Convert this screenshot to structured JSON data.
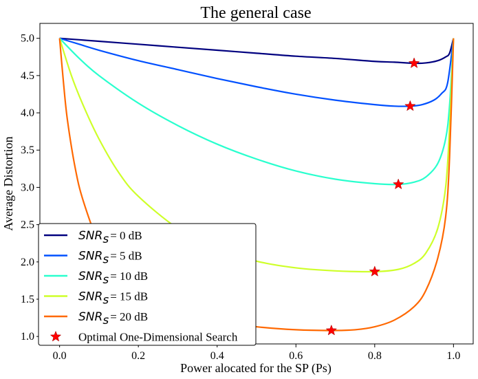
{
  "chart_data": {
    "type": "line",
    "title": "The general case",
    "xlabel": "Power alocated for the SP (Ps)",
    "ylabel": "Average Distortion",
    "xlim": [
      -0.05,
      1.05
    ],
    "ylim": [
      0.9,
      5.2
    ],
    "xticks": [
      "0.0",
      "0.2",
      "0.4",
      "0.6",
      "0.8",
      "1.0"
    ],
    "yticks": [
      "1.0",
      "1.5",
      "2.0",
      "2.5",
      "3.0",
      "3.5",
      "4.0",
      "4.5",
      "5.0"
    ],
    "grid": false,
    "legend_position": "lower-left",
    "series": [
      {
        "name": "SNR_s = 0 dB",
        "legend_math": "SNR",
        "legend_sub": "s",
        "legend_tail": "= 0 dB",
        "color": "#00007f",
        "x": [
          0,
          0.05,
          0.1,
          0.2,
          0.3,
          0.4,
          0.5,
          0.6,
          0.7,
          0.8,
          0.85,
          0.9,
          0.93,
          0.96,
          0.98,
          0.99,
          1.0
        ],
        "y": [
          5.0,
          4.98,
          4.96,
          4.92,
          4.88,
          4.84,
          4.8,
          4.76,
          4.73,
          4.69,
          4.68,
          4.665,
          4.67,
          4.7,
          4.75,
          4.8,
          5.0
        ]
      },
      {
        "name": "SNR_s = 5 dB",
        "legend_math": "SNR",
        "legend_sub": "s",
        "legend_tail": "= 5 dB",
        "color": "#0050ff",
        "x": [
          0,
          0.05,
          0.1,
          0.2,
          0.3,
          0.4,
          0.5,
          0.6,
          0.7,
          0.8,
          0.85,
          0.89,
          0.92,
          0.95,
          0.97,
          0.985,
          1.0
        ],
        "y": [
          5.0,
          4.92,
          4.84,
          4.7,
          4.58,
          4.46,
          4.35,
          4.25,
          4.17,
          4.11,
          4.09,
          4.09,
          4.11,
          4.17,
          4.26,
          4.4,
          5.0
        ]
      },
      {
        "name": "SNR_s = 10 dB",
        "legend_math": "SNR",
        "legend_sub": "s",
        "legend_tail": "= 10 dB",
        "color": "#29ffce",
        "x": [
          0,
          0.05,
          0.1,
          0.2,
          0.3,
          0.4,
          0.5,
          0.6,
          0.7,
          0.8,
          0.86,
          0.9,
          0.93,
          0.96,
          0.98,
          0.99,
          1.0
        ],
        "y": [
          5.0,
          4.73,
          4.5,
          4.13,
          3.83,
          3.58,
          3.38,
          3.22,
          3.11,
          3.05,
          3.04,
          3.07,
          3.14,
          3.32,
          3.65,
          4.1,
          5.0
        ]
      },
      {
        "name": "SNR_s = 15 dB",
        "legend_math": "SNR",
        "legend_sub": "s",
        "legend_tail": "= 15 dB",
        "color": "#ceff29",
        "x": [
          0,
          0.03,
          0.06,
          0.1,
          0.15,
          0.2,
          0.3,
          0.4,
          0.5,
          0.6,
          0.7,
          0.8,
          0.86,
          0.9,
          0.93,
          0.96,
          0.98,
          0.99,
          1.0
        ],
        "y": [
          5.0,
          4.5,
          4.1,
          3.65,
          3.2,
          2.88,
          2.45,
          2.18,
          2.01,
          1.92,
          1.88,
          1.87,
          1.9,
          1.98,
          2.12,
          2.45,
          3.0,
          3.8,
          5.0
        ]
      },
      {
        "name": "SNR_s = 20 dB",
        "legend_math": "SNR",
        "legend_sub": "s",
        "legend_tail": "= 20 dB",
        "color": "#ff6800",
        "x": [
          0,
          0.01,
          0.02,
          0.04,
          0.06,
          0.1,
          0.15,
          0.2,
          0.3,
          0.4,
          0.5,
          0.6,
          0.69,
          0.75,
          0.8,
          0.85,
          0.9,
          0.93,
          0.96,
          0.98,
          0.99,
          1.0
        ],
        "y": [
          5.0,
          4.4,
          3.9,
          3.25,
          2.82,
          2.25,
          1.86,
          1.6,
          1.34,
          1.2,
          1.13,
          1.09,
          1.08,
          1.09,
          1.13,
          1.22,
          1.4,
          1.62,
          2.05,
          2.6,
          3.4,
          5.0
        ]
      }
    ],
    "optimal_points": {
      "name": "Optimal One-Dimensional Search",
      "color": "#ff0000",
      "x": [
        0.9,
        0.89,
        0.86,
        0.8,
        0.69
      ],
      "y": [
        4.665,
        4.09,
        3.04,
        1.87,
        1.08
      ]
    }
  }
}
